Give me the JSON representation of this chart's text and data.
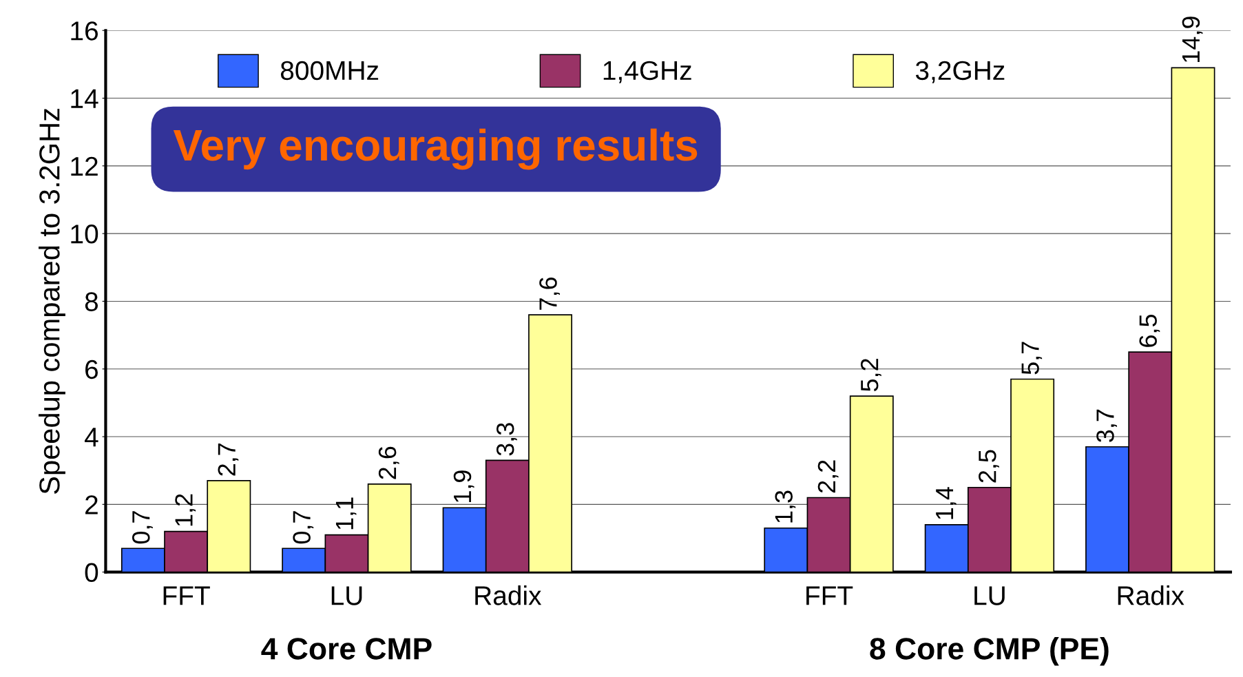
{
  "chart_data": {
    "type": "bar",
    "ylabel": "Speedup compared to 3.2GHz",
    "categories": [
      "FFT",
      "LU",
      "Radix",
      null,
      "FFT",
      "LU",
      "Radix"
    ],
    "series": [
      {
        "name": "800MHz",
        "color": "#3366ff",
        "values": [
          0.7,
          0.7,
          1.9,
          null,
          1.3,
          1.4,
          3.7
        ],
        "value_labels": [
          "0,7",
          "0,7",
          "1,9",
          null,
          "1,3",
          "1,4",
          "3,7"
        ]
      },
      {
        "name": "1,4GHz",
        "color": "#993366",
        "values": [
          1.2,
          1.1,
          3.3,
          null,
          2.2,
          2.5,
          6.5
        ],
        "value_labels": [
          "1,2",
          "1,1",
          "3,3",
          null,
          "2,2",
          "2,5",
          "6,5"
        ]
      },
      {
        "name": "3,2GHz",
        "color": "#ffff99",
        "values": [
          2.7,
          2.6,
          7.6,
          null,
          5.2,
          5.7,
          14.9
        ],
        "value_labels": [
          "2,7",
          "2,6",
          "7,6",
          null,
          "5,2",
          "5,7",
          "14,9"
        ]
      }
    ],
    "ylim": [
      0,
      16
    ],
    "yticks": [
      0,
      2,
      4,
      6,
      8,
      10,
      12,
      14,
      16
    ],
    "grid": "y",
    "legend": "top",
    "annotations": [
      "Very encouraging results",
      "4 Core CMP",
      "8 Core CMP (PE)"
    ]
  }
}
